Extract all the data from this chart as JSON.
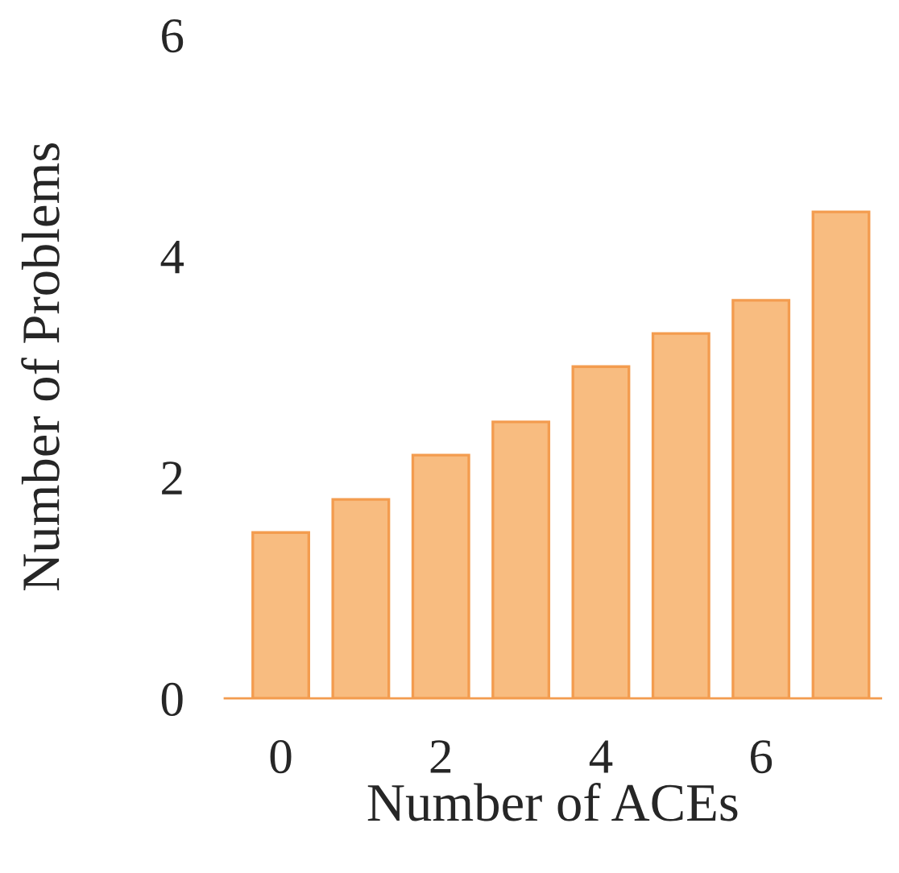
{
  "chart_data": {
    "type": "bar",
    "xlabel": "Number of ACEs",
    "ylabel": "Number of Problems",
    "x": [
      0,
      1,
      2,
      3,
      4,
      5,
      6,
      7
    ],
    "values": [
      1.5,
      1.8,
      2.2,
      2.5,
      3.0,
      3.3,
      3.6,
      4.4
    ],
    "color": "#f8bc80",
    "xlim": [
      -0.7,
      7.5
    ],
    "xticks": [
      0,
      2,
      4,
      6
    ],
    "ylim": [
      0,
      6
    ],
    "yticks": [
      0,
      2,
      4,
      6
    ],
    "grid": false
  }
}
